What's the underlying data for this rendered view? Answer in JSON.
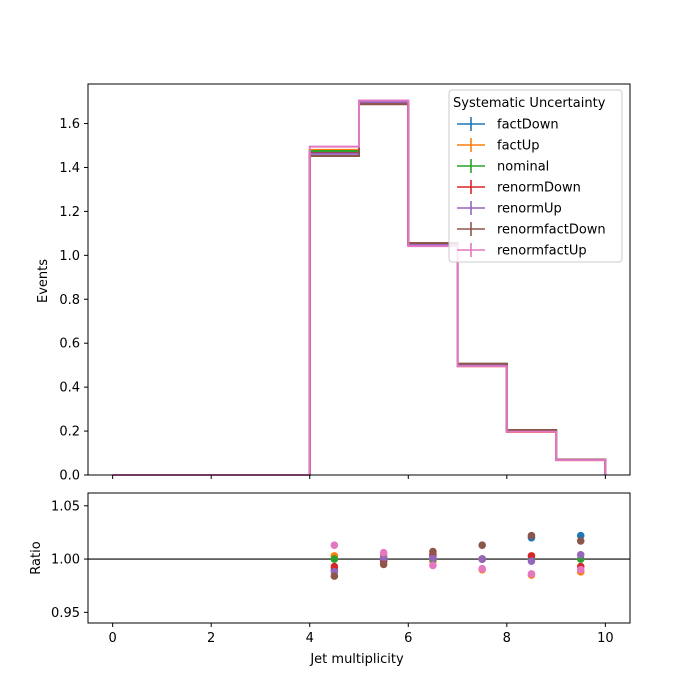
{
  "chart_data": [
    {
      "type": "histogram-step",
      "title": "",
      "xlabel": "",
      "ylabel": "Events",
      "xlim": [
        -0.5,
        10.5
      ],
      "ylim": [
        0.0,
        1.78
      ],
      "yticks": [
        0.0,
        0.2,
        0.4,
        0.6,
        0.8,
        1.0,
        1.2,
        1.4,
        1.6
      ],
      "ytick_labels": [
        "0.0",
        "0.2",
        "0.4",
        "0.6",
        "0.8",
        "1.0",
        "1.2",
        "1.4",
        "1.6"
      ],
      "xticks": [
        0,
        2,
        4,
        6,
        8,
        10
      ],
      "bin_edges": [
        0,
        1,
        2,
        3,
        4,
        5,
        6,
        7,
        8,
        9,
        10
      ],
      "legend": {
        "title": "Systematic Uncertainty",
        "placement": "top-right"
      },
      "series": [
        {
          "name": "factDown",
          "color": "#1f77b4",
          "values": [
            0,
            0,
            0,
            0,
            1.47,
            1.69,
            1.05,
            0.505,
            0.205,
            0.07
          ]
        },
        {
          "name": "factUp",
          "color": "#ff7f0e",
          "values": [
            0,
            0,
            0,
            0,
            1.48,
            1.7,
            1.046,
            0.495,
            0.196,
            0.068
          ]
        },
        {
          "name": "nominal",
          "color": "#2ca02c",
          "values": [
            0,
            0,
            0,
            0,
            1.475,
            1.695,
            1.048,
            0.5,
            0.2,
            0.069
          ]
        },
        {
          "name": "renormDown",
          "color": "#d62728",
          "values": [
            0,
            0,
            0,
            0,
            1.465,
            1.692,
            1.052,
            0.505,
            0.201,
            0.069
          ]
        },
        {
          "name": "renormUp",
          "color": "#9467bd",
          "values": [
            0,
            0,
            0,
            0,
            1.462,
            1.697,
            1.049,
            0.5,
            0.2,
            0.069
          ]
        },
        {
          "name": "renormfactDown",
          "color": "#8c564b",
          "values": [
            0,
            0,
            0,
            0,
            1.452,
            1.688,
            1.056,
            0.507,
            0.205,
            0.07
          ]
        },
        {
          "name": "renormfactUp",
          "color": "#e377c2",
          "values": [
            0,
            0,
            0,
            0,
            1.495,
            1.705,
            1.042,
            0.495,
            0.197,
            0.068
          ]
        }
      ]
    },
    {
      "type": "scatter",
      "title": "",
      "xlabel": "Jet multiplicity",
      "ylabel": "Ratio",
      "xlim": [
        -0.5,
        10.5
      ],
      "ylim": [
        0.94,
        1.062
      ],
      "yticks": [
        0.95,
        1.0,
        1.05
      ],
      "ytick_labels": [
        "0.95",
        "1.00",
        "1.05"
      ],
      "xticks": [
        0,
        2,
        4,
        6,
        8,
        10
      ],
      "xtick_labels": [
        "0",
        "2",
        "4",
        "6",
        "8",
        "10"
      ],
      "reference_line": 1.0,
      "x": [
        4.5,
        5.5,
        6.5,
        7.5,
        8.5,
        9.5
      ],
      "series": [
        {
          "name": "factDown",
          "color": "#1f77b4",
          "values": [
            0.99,
            0.999,
            1.002,
            1.0,
            1.02,
            1.022
          ]
        },
        {
          "name": "factUp",
          "color": "#ff7f0e",
          "values": [
            1.003,
            1.003,
            0.998,
            0.99,
            0.985,
            0.988
          ]
        },
        {
          "name": "nominal",
          "color": "#2ca02c",
          "values": [
            1.0,
            1.0,
            1.0,
            1.0,
            1.0,
            1.0
          ]
        },
        {
          "name": "renormDown",
          "color": "#d62728",
          "values": [
            0.993,
            0.998,
            1.004,
            1.0,
            1.003,
            0.993
          ]
        },
        {
          "name": "renormUp",
          "color": "#9467bd",
          "values": [
            0.988,
            1.001,
            1.001,
            1.0,
            0.998,
            1.004
          ]
        },
        {
          "name": "renormfactDown",
          "color": "#8c564b",
          "values": [
            0.984,
            0.995,
            1.007,
            1.013,
            1.022,
            1.017
          ]
        },
        {
          "name": "renormfactUp",
          "color": "#e377c2",
          "values": [
            1.013,
            1.006,
            0.994,
            0.991,
            0.986,
            0.99
          ]
        }
      ]
    }
  ]
}
